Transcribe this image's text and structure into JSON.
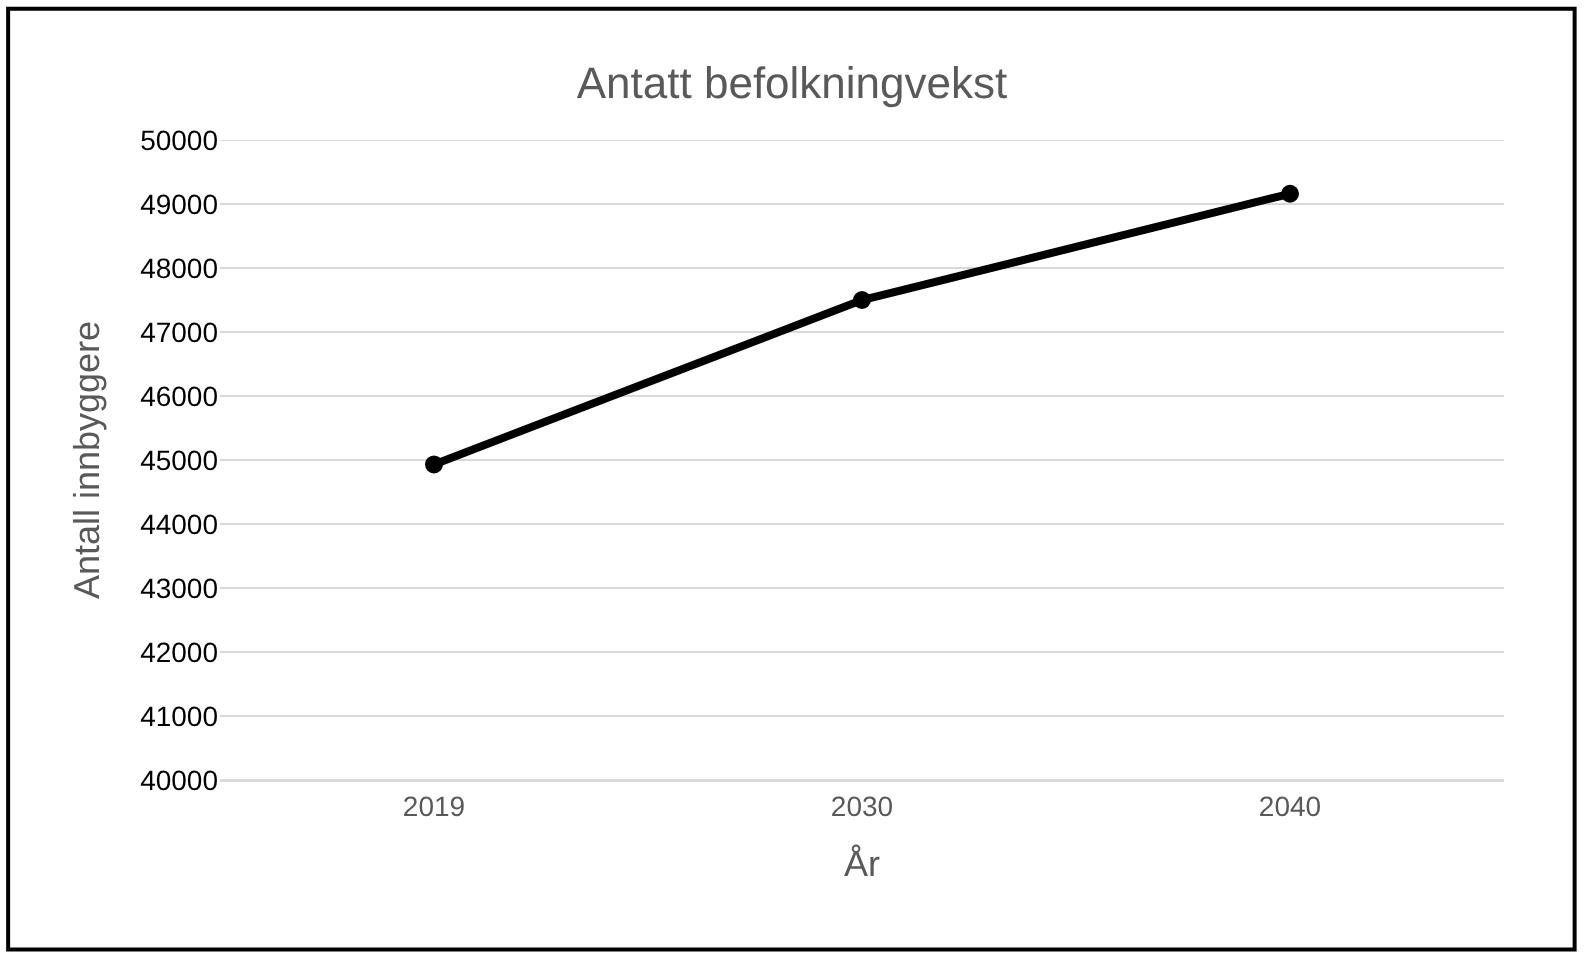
{
  "chart_data": {
    "type": "line",
    "title": "Antatt befolkningvekst",
    "xlabel": "År",
    "ylabel": "Antall innbyggere",
    "categories": [
      "2019",
      "2030",
      "2040"
    ],
    "series": [
      {
        "color": "#000000",
        "values": [
          44930,
          47500,
          49160
        ]
      }
    ],
    "ylim": [
      40000,
      50000
    ],
    "yticks": [
      40000,
      41000,
      42000,
      43000,
      44000,
      45000,
      46000,
      47000,
      48000,
      49000,
      50000
    ],
    "grid": "y",
    "marker": "circle",
    "line_style": "solid"
  }
}
